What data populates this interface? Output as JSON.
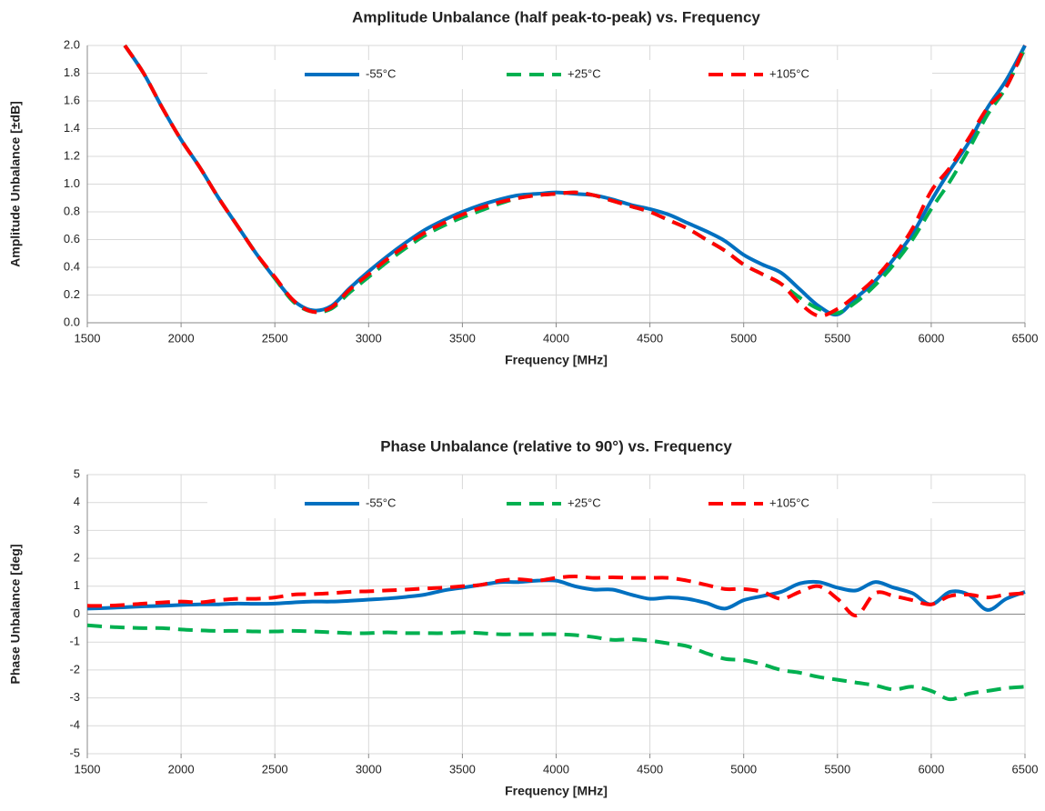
{
  "chart_data": [
    {
      "type": "line",
      "title": "Amplitude Unbalance (half peak-to-peak) vs. Frequency",
      "x_label": "Frequency [MHz]",
      "y_label": "Amplitude Unbalance [±dB]",
      "x": [
        1700,
        1800,
        1900,
        2000,
        2100,
        2200,
        2300,
        2400,
        2500,
        2600,
        2700,
        2800,
        2900,
        3000,
        3100,
        3200,
        3300,
        3400,
        3500,
        3600,
        3700,
        3800,
        3900,
        4000,
        4100,
        4200,
        4300,
        4400,
        4500,
        4600,
        4700,
        4800,
        4900,
        5000,
        5100,
        5200,
        5300,
        5400,
        5500,
        5600,
        5700,
        5800,
        5900,
        6000,
        6100,
        6200,
        6300,
        6400,
        6500
      ],
      "series": [
        {
          "name": "-55°C",
          "color": "#0070c0",
          "dashed": false,
          "values": [
            2.0,
            1.8,
            1.55,
            1.32,
            1.12,
            0.9,
            0.7,
            0.5,
            0.32,
            0.16,
            0.09,
            0.12,
            0.25,
            0.37,
            0.48,
            0.58,
            0.67,
            0.74,
            0.8,
            0.85,
            0.89,
            0.92,
            0.93,
            0.94,
            0.93,
            0.92,
            0.89,
            0.85,
            0.82,
            0.78,
            0.72,
            0.66,
            0.59,
            0.49,
            0.42,
            0.36,
            0.24,
            0.12,
            0.06,
            0.18,
            0.3,
            0.46,
            0.64,
            0.88,
            1.1,
            1.3,
            1.55,
            1.75,
            2.0
          ]
        },
        {
          "name": "+25°C",
          "color": "#00b050",
          "dashed": true,
          "values": [
            2.0,
            1.8,
            1.55,
            1.32,
            1.12,
            0.9,
            0.7,
            0.5,
            0.32,
            0.15,
            0.08,
            0.1,
            0.22,
            0.33,
            0.44,
            0.54,
            0.63,
            0.7,
            0.76,
            0.81,
            0.86,
            0.9,
            0.92,
            0.93,
            0.94,
            0.92,
            0.88,
            0.84,
            0.8,
            0.74,
            0.68,
            0.6,
            0.52,
            0.42,
            0.35,
            0.28,
            0.18,
            0.1,
            0.07,
            0.15,
            0.27,
            0.42,
            0.6,
            0.82,
            1.02,
            1.25,
            1.5,
            1.7,
            1.98
          ]
        },
        {
          "name": "+105°C",
          "color": "#ff0000",
          "dashed": true,
          "values": [
            2.0,
            1.8,
            1.55,
            1.32,
            1.12,
            0.9,
            0.7,
            0.5,
            0.33,
            0.16,
            0.08,
            0.11,
            0.24,
            0.35,
            0.46,
            0.56,
            0.65,
            0.72,
            0.78,
            0.83,
            0.87,
            0.9,
            0.92,
            0.93,
            0.94,
            0.92,
            0.88,
            0.84,
            0.8,
            0.74,
            0.68,
            0.6,
            0.52,
            0.42,
            0.35,
            0.28,
            0.14,
            0.05,
            0.1,
            0.2,
            0.32,
            0.48,
            0.68,
            0.95,
            1.12,
            1.33,
            1.55,
            1.7,
            2.0
          ]
        }
      ],
      "xlim": [
        1500,
        6500
      ],
      "xticks": [
        1500,
        2000,
        2500,
        3000,
        3500,
        4000,
        4500,
        5000,
        5500,
        6000,
        6500
      ],
      "ylim": [
        0,
        2
      ],
      "yticks": [
        {
          "value": 0,
          "label": "0.0"
        },
        {
          "value": 0.2,
          "label": "0.2"
        },
        {
          "value": 0.4,
          "label": "0.4"
        },
        {
          "value": 0.6,
          "label": "0.6"
        },
        {
          "value": 0.8,
          "label": "0.8"
        },
        {
          "value": 1,
          "label": "1.0"
        },
        {
          "value": 1.2,
          "label": "1.2"
        },
        {
          "value": 1.4,
          "label": "1.4"
        },
        {
          "value": 1.6,
          "label": "1.6"
        },
        {
          "value": 1.8,
          "label": "1.8"
        },
        {
          "value": 2,
          "label": "2.0"
        }
      ],
      "grid": true,
      "legend": "top"
    },
    {
      "type": "line",
      "title": "Phase Unbalance (relative to 90°) vs. Frequency",
      "x_label": "Frequency [MHz]",
      "y_label": "Phase Unbalance [deg]",
      "x": [
        1500,
        1600,
        1700,
        1800,
        1900,
        2000,
        2100,
        2200,
        2300,
        2400,
        2500,
        2600,
        2700,
        2800,
        2900,
        3000,
        3100,
        3200,
        3300,
        3400,
        3500,
        3600,
        3700,
        3800,
        3900,
        4000,
        4100,
        4200,
        4300,
        4400,
        4500,
        4600,
        4700,
        4800,
        4900,
        5000,
        5100,
        5200,
        5300,
        5400,
        5500,
        5600,
        5700,
        5800,
        5900,
        6000,
        6100,
        6200,
        6300,
        6400,
        6500
      ],
      "series": [
        {
          "name": "-55°C",
          "color": "#0070c0",
          "dashed": false,
          "values": [
            0.2,
            0.22,
            0.25,
            0.28,
            0.3,
            0.33,
            0.35,
            0.35,
            0.38,
            0.37,
            0.38,
            0.42,
            0.45,
            0.45,
            0.48,
            0.52,
            0.56,
            0.62,
            0.7,
            0.85,
            0.95,
            1.05,
            1.15,
            1.15,
            1.2,
            1.2,
            1.0,
            0.88,
            0.88,
            0.7,
            0.55,
            0.6,
            0.55,
            0.4,
            0.2,
            0.5,
            0.65,
            0.8,
            1.1,
            1.15,
            0.95,
            0.85,
            1.15,
            0.95,
            0.75,
            0.35,
            0.8,
            0.7,
            0.15,
            0.55,
            0.8
          ]
        },
        {
          "name": "+25°C",
          "color": "#00b050",
          "dashed": true,
          "values": [
            -0.4,
            -0.45,
            -0.48,
            -0.5,
            -0.5,
            -0.55,
            -0.58,
            -0.6,
            -0.6,
            -0.62,
            -0.62,
            -0.6,
            -0.62,
            -0.65,
            -0.68,
            -0.68,
            -0.65,
            -0.68,
            -0.68,
            -0.68,
            -0.65,
            -0.68,
            -0.72,
            -0.72,
            -0.72,
            -0.72,
            -0.75,
            -0.82,
            -0.92,
            -0.9,
            -0.95,
            -1.05,
            -1.15,
            -1.4,
            -1.6,
            -1.65,
            -1.8,
            -2.0,
            -2.1,
            -2.25,
            -2.35,
            -2.45,
            -2.55,
            -2.7,
            -2.6,
            -2.75,
            -3.05,
            -2.85,
            -2.75,
            -2.65,
            -2.6
          ]
        },
        {
          "name": "+105°C",
          "color": "#ff0000",
          "dashed": true,
          "values": [
            0.3,
            0.3,
            0.33,
            0.38,
            0.42,
            0.45,
            0.42,
            0.5,
            0.55,
            0.55,
            0.6,
            0.7,
            0.72,
            0.75,
            0.8,
            0.82,
            0.85,
            0.88,
            0.92,
            0.95,
            1.0,
            1.05,
            1.2,
            1.25,
            1.2,
            1.3,
            1.35,
            1.3,
            1.32,
            1.3,
            1.3,
            1.3,
            1.2,
            1.05,
            0.9,
            0.9,
            0.8,
            0.55,
            0.8,
            1.0,
            0.55,
            -0.05,
            0.75,
            0.65,
            0.5,
            0.35,
            0.65,
            0.7,
            0.6,
            0.7,
            0.75
          ]
        }
      ],
      "xlim": [
        1500,
        6500
      ],
      "xticks": [
        1500,
        2000,
        2500,
        3000,
        3500,
        4000,
        4500,
        5000,
        5500,
        6000,
        6500
      ],
      "ylim": [
        -5,
        5
      ],
      "yticks": [
        -5,
        -4,
        -3,
        -2,
        -1,
        0,
        1,
        2,
        3,
        4,
        5
      ],
      "grid": true,
      "legend": "top"
    }
  ]
}
